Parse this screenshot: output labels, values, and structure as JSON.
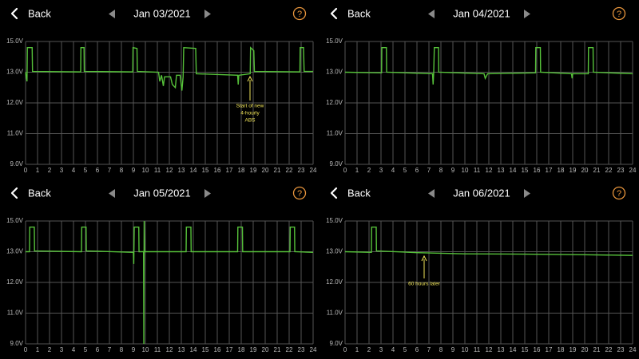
{
  "nav": {
    "back": "Back",
    "help": "?"
  },
  "chart_data": [
    {
      "type": "line",
      "title": "Jan 03/2021",
      "color": "#56c13a",
      "grid": true,
      "xlim": [
        0,
        24
      ],
      "xticks": [
        0,
        1,
        2,
        3,
        4,
        5,
        6,
        7,
        8,
        9,
        10,
        11,
        12,
        13,
        14,
        15,
        16,
        17,
        18,
        19,
        20,
        21,
        22,
        23,
        24
      ],
      "ylim": [
        9,
        15
      ],
      "yticks": [
        {
          "value": 9,
          "label": "9.0V"
        },
        {
          "value": 11,
          "label": "11.0V"
        },
        {
          "value": 12,
          "label": "12.0V"
        },
        {
          "value": 13,
          "label": "13.0V"
        },
        {
          "value": 15,
          "label": "15.0V"
        }
      ],
      "annotation": [
        "Start of new",
        "4-hourly",
        "ABS"
      ],
      "x": [
        0,
        0.12,
        0.15,
        0.55,
        0.58,
        4.6,
        4.62,
        4.88,
        4.9,
        8.95,
        8.97,
        9.3,
        9.33,
        11.1,
        11.2,
        11.35,
        11.5,
        11.6,
        12.1,
        12.25,
        12.5,
        12.6,
        12.9,
        13.05,
        13.15,
        13.2,
        14.2,
        14.25,
        17.7,
        17.75,
        17.8,
        18.75,
        18.78,
        19.05,
        19.1,
        22.9,
        22.92,
        23.2,
        23.25,
        24
      ],
      "values": [
        13.0,
        12.7,
        14.6,
        14.6,
        13.05,
        13.02,
        14.6,
        14.6,
        13.05,
        13.02,
        14.6,
        14.55,
        13.05,
        13.0,
        12.7,
        12.9,
        12.55,
        12.85,
        12.85,
        12.6,
        12.5,
        12.9,
        12.9,
        12.4,
        12.85,
        14.6,
        14.55,
        12.95,
        12.9,
        12.6,
        12.9,
        12.95,
        14.6,
        14.4,
        13.05,
        13.02,
        14.6,
        14.6,
        13.05,
        13.05
      ]
    },
    {
      "type": "line",
      "title": "Jan 04/2021",
      "color": "#56c13a",
      "grid": true,
      "xlim": [
        0,
        24
      ],
      "xticks": [
        0,
        1,
        2,
        3,
        4,
        5,
        6,
        7,
        8,
        9,
        10,
        11,
        12,
        13,
        14,
        15,
        16,
        17,
        18,
        19,
        20,
        21,
        22,
        23,
        24
      ],
      "ylim": [
        9,
        15
      ],
      "yticks": [
        {
          "value": 9,
          "label": "9.0V"
        },
        {
          "value": 11,
          "label": "11.0V"
        },
        {
          "value": 12,
          "label": "12.0V"
        },
        {
          "value": 13,
          "label": "13.0V"
        },
        {
          "value": 15,
          "label": "15.0V"
        }
      ],
      "x": [
        0,
        3.05,
        3.07,
        3.45,
        3.47,
        7.3,
        7.35,
        7.4,
        7.45,
        7.8,
        7.82,
        11.6,
        11.7,
        11.9,
        15.9,
        15.92,
        16.3,
        16.32,
        18.9,
        18.95,
        19.0,
        20.3,
        20.32,
        20.7,
        20.72,
        24
      ],
      "values": [
        13.0,
        12.98,
        14.6,
        14.6,
        13.0,
        12.95,
        12.6,
        13.0,
        14.6,
        14.6,
        13.0,
        12.95,
        12.8,
        12.95,
        12.98,
        14.6,
        14.6,
        13.0,
        12.95,
        12.8,
        12.95,
        12.95,
        14.6,
        14.6,
        13.0,
        12.95
      ]
    },
    {
      "type": "line",
      "title": "Jan 05/2021",
      "color": "#56c13a",
      "grid": true,
      "xlim": [
        0,
        24
      ],
      "xticks": [
        0,
        1,
        2,
        3,
        4,
        5,
        6,
        7,
        8,
        9,
        10,
        11,
        12,
        13,
        14,
        15,
        16,
        17,
        18,
        19,
        20,
        21,
        22,
        23,
        24
      ],
      "ylim": [
        9,
        15
      ],
      "yticks": [
        {
          "value": 9,
          "label": "9.0V"
        },
        {
          "value": 11,
          "label": "11.0V"
        },
        {
          "value": 12,
          "label": "12.0V"
        },
        {
          "value": 13,
          "label": "13.0V"
        },
        {
          "value": 15,
          "label": "15.0V"
        }
      ],
      "x": [
        0,
        0.33,
        0.35,
        0.73,
        0.75,
        4.67,
        4.69,
        5.05,
        5.07,
        9.0,
        9.03,
        9.07,
        9.45,
        9.47,
        9.85,
        9.87,
        9.9,
        9.93,
        13.4,
        13.42,
        13.8,
        13.82,
        17.7,
        17.72,
        18.1,
        18.12,
        22.07,
        22.09,
        22.45,
        22.47,
        24
      ],
      "values": [
        13.0,
        13.0,
        14.6,
        14.6,
        13.05,
        13.0,
        14.6,
        14.6,
        13.05,
        12.98,
        12.6,
        14.6,
        14.6,
        13.0,
        13.0,
        9.0,
        15.0,
        13.0,
        13.0,
        14.6,
        14.6,
        13.0,
        13.0,
        14.6,
        14.6,
        13.0,
        13.0,
        14.6,
        14.6,
        13.0,
        12.98
      ]
    },
    {
      "type": "line",
      "title": "Jan 06/2021",
      "color": "#56c13a",
      "grid": true,
      "xlim": [
        0,
        24
      ],
      "xticks": [
        0,
        1,
        2,
        3,
        4,
        5,
        6,
        7,
        8,
        9,
        10,
        11,
        12,
        13,
        14,
        15,
        16,
        17,
        18,
        19,
        20,
        21,
        22,
        23,
        24
      ],
      "ylim": [
        9,
        15
      ],
      "yticks": [
        {
          "value": 9,
          "label": "9.0V"
        },
        {
          "value": 11,
          "label": "11.0V"
        },
        {
          "value": 12,
          "label": "12.0V"
        },
        {
          "value": 13,
          "label": "13.0V"
        },
        {
          "value": 15,
          "label": "15.0V"
        }
      ],
      "annotation": [
        "60 hours later"
      ],
      "x": [
        0,
        2.2,
        2.22,
        2.6,
        2.62,
        6,
        10,
        15,
        20,
        24
      ],
      "values": [
        13.0,
        12.98,
        14.6,
        14.6,
        13.05,
        12.97,
        12.93,
        12.92,
        12.9,
        12.88
      ]
    }
  ]
}
